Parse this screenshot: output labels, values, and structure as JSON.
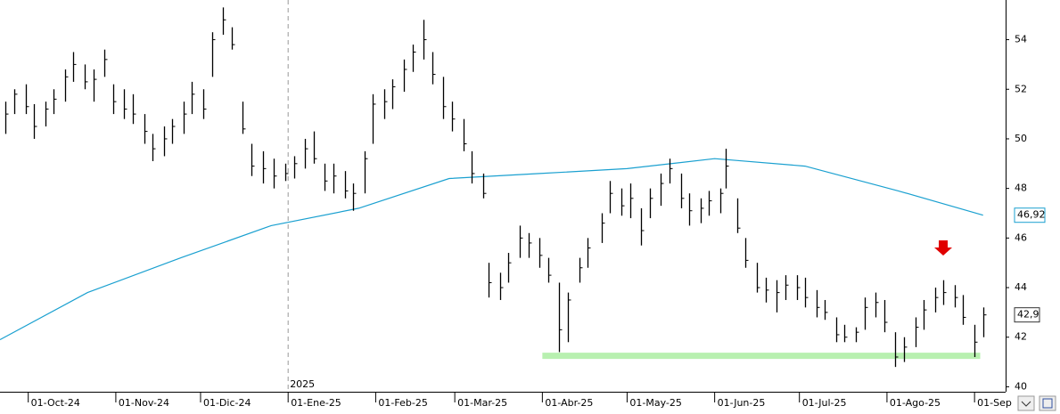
{
  "chart_data": {
    "type": "ohlc",
    "x": [
      "2024-09-23",
      "2024-09-26",
      "2024-09-30",
      "2024-10-03",
      "2024-10-07",
      "2024-10-10",
      "2024-10-14",
      "2024-10-17",
      "2024-10-21",
      "2024-10-24",
      "2024-10-28",
      "2024-10-31",
      "2024-11-04",
      "2024-11-07",
      "2024-11-11",
      "2024-11-14",
      "2024-11-18",
      "2024-11-21",
      "2024-11-25",
      "2024-11-28",
      "2024-12-02",
      "2024-12-05",
      "2024-12-09",
      "2024-12-12",
      "2024-12-16",
      "2024-12-19",
      "2024-12-23",
      "2024-12-27",
      "2024-12-31",
      "2025-01-03",
      "2025-01-07",
      "2025-01-10",
      "2025-01-14",
      "2025-01-17",
      "2025-01-21",
      "2025-01-24",
      "2025-01-28",
      "2025-01-31",
      "2025-02-04",
      "2025-02-07",
      "2025-02-11",
      "2025-02-14",
      "2025-02-18",
      "2025-02-21",
      "2025-02-25",
      "2025-02-28",
      "2025-03-04",
      "2025-03-07",
      "2025-03-11",
      "2025-03-13",
      "2025-03-17",
      "2025-03-20",
      "2025-03-24",
      "2025-03-27",
      "2025-03-31",
      "2025-04-03",
      "2025-04-07",
      "2025-04-10",
      "2025-04-14",
      "2025-04-17",
      "2025-04-22",
      "2025-04-25",
      "2025-04-29",
      "2025-05-02",
      "2025-05-06",
      "2025-05-09",
      "2025-05-13",
      "2025-05-16",
      "2025-05-20",
      "2025-05-23",
      "2025-05-27",
      "2025-05-30",
      "2025-06-03",
      "2025-06-05",
      "2025-06-09",
      "2025-06-12",
      "2025-06-16",
      "2025-06-19",
      "2025-06-23",
      "2025-06-26",
      "2025-06-30",
      "2025-07-03",
      "2025-07-07",
      "2025-07-10",
      "2025-07-14",
      "2025-07-17",
      "2025-07-21",
      "2025-07-24",
      "2025-07-28",
      "2025-07-31",
      "2025-08-04",
      "2025-08-07",
      "2025-08-11",
      "2025-08-14",
      "2025-08-18",
      "2025-08-21",
      "2025-08-25",
      "2025-08-28",
      "2025-09-01",
      "2025-09-04"
    ],
    "high": [
      51.5,
      52.0,
      52.2,
      51.4,
      51.5,
      52.0,
      52.8,
      53.5,
      53.0,
      52.8,
      53.6,
      52.2,
      52.0,
      51.8,
      51.0,
      50.2,
      50.5,
      50.8,
      51.5,
      52.3,
      52.0,
      54.3,
      55.3,
      54.5,
      51.5,
      49.8,
      49.5,
      49.2,
      49.0,
      49.3,
      50.0,
      50.3,
      49.0,
      49.0,
      48.7,
      48.2,
      49.5,
      51.8,
      52.0,
      52.4,
      53.2,
      53.8,
      54.8,
      53.5,
      52.5,
      51.5,
      50.8,
      49.5,
      48.6,
      45.0,
      44.6,
      45.4,
      46.5,
      46.2,
      46.0,
      45.2,
      44.2,
      43.8,
      45.2,
      46.0,
      47.0,
      48.3,
      48.0,
      48.2,
      47.2,
      48.0,
      48.6,
      49.2,
      48.6,
      47.8,
      47.6,
      47.9,
      48.0,
      49.6,
      47.6,
      46.0,
      45.0,
      44.4,
      44.3,
      44.5,
      44.5,
      44.4,
      43.9,
      43.5,
      42.8,
      42.5,
      42.4,
      43.6,
      43.8,
      43.5,
      42.2,
      42.0,
      42.8,
      43.5,
      44.0,
      44.3,
      44.1,
      43.7,
      42.5,
      43.2
    ],
    "low": [
      50.2,
      51.0,
      51.0,
      50.0,
      50.5,
      51.0,
      51.5,
      52.3,
      52.0,
      51.5,
      52.5,
      51.0,
      50.8,
      50.6,
      49.8,
      49.1,
      49.3,
      49.8,
      50.2,
      51.0,
      50.8,
      52.5,
      54.2,
      53.6,
      50.2,
      48.5,
      48.2,
      48.0,
      48.3,
      48.4,
      48.8,
      49.0,
      47.9,
      47.8,
      47.6,
      47.1,
      47.8,
      49.8,
      50.8,
      51.2,
      51.9,
      52.7,
      53.2,
      52.2,
      50.8,
      50.3,
      49.5,
      48.2,
      47.6,
      43.6,
      43.5,
      44.2,
      45.2,
      45.2,
      44.8,
      44.2,
      41.4,
      41.8,
      44.2,
      44.8,
      45.8,
      47.0,
      46.9,
      46.8,
      45.7,
      46.8,
      47.3,
      48.2,
      47.2,
      46.5,
      46.6,
      46.9,
      47.0,
      48.0,
      46.2,
      44.8,
      43.8,
      43.4,
      43.0,
      43.5,
      43.5,
      43.2,
      42.8,
      42.7,
      41.8,
      41.8,
      41.8,
      42.3,
      42.8,
      42.2,
      40.8,
      41.0,
      41.6,
      42.3,
      43.0,
      43.3,
      43.2,
      42.5,
      41.2,
      42.0
    ],
    "close": [
      51.0,
      51.8,
      51.3,
      50.5,
      51.2,
      51.6,
      52.5,
      53.0,
      52.3,
      52.4,
      53.2,
      51.5,
      51.2,
      51.0,
      50.3,
      49.6,
      50.0,
      50.5,
      51.0,
      51.8,
      51.2,
      54.0,
      54.8,
      53.8,
      50.4,
      48.9,
      48.8,
      48.5,
      48.6,
      49.0,
      49.6,
      49.2,
      48.3,
      48.5,
      47.9,
      47.8,
      49.2,
      51.4,
      51.5,
      52.1,
      52.8,
      53.5,
      54.0,
      52.6,
      51.3,
      50.8,
      49.8,
      48.6,
      47.8,
      44.2,
      44.0,
      45.0,
      46.0,
      45.8,
      45.3,
      44.5,
      42.3,
      43.5,
      44.8,
      45.6,
      46.6,
      47.8,
      47.3,
      47.6,
      46.3,
      47.6,
      48.2,
      48.8,
      47.6,
      47.1,
      47.2,
      47.5,
      47.8,
      48.9,
      46.4,
      45.1,
      44.0,
      43.9,
      43.8,
      44.1,
      44.0,
      43.6,
      43.2,
      43.0,
      42.1,
      42.0,
      42.2,
      43.2,
      43.4,
      42.6,
      41.2,
      41.6,
      42.4,
      43.1,
      43.6,
      43.8,
      43.6,
      42.8,
      41.8,
      42.9
    ],
    "close_label": "42,9",
    "color": "#000000",
    "moving_average": {
      "x": [
        "2024-09-21",
        "2024-10-22",
        "2024-11-24",
        "2024-12-26",
        "2025-01-26",
        "2025-02-27",
        "2025-03-31",
        "2025-05-01",
        "2025-06-01",
        "2025-07-03",
        "2025-08-05",
        "2025-09-04"
      ],
      "values": [
        41.9,
        43.8,
        45.2,
        46.5,
        47.2,
        48.4,
        48.6,
        48.8,
        49.2,
        48.9,
        47.9,
        46.92
      ],
      "value_label": "46,92",
      "color": "#1aa0d0"
    },
    "support": {
      "value": 41.25,
      "from": "2025-04-01",
      "to": "2025-09-03",
      "color": "#b8f0b0"
    },
    "year_marker": {
      "x": "2025-01-01",
      "label": "2025"
    },
    "xlim": [
      "2024-09-21",
      "2025-09-12"
    ],
    "xticks": [
      {
        "value": "2024-10-01",
        "label": "01-Oct-24"
      },
      {
        "value": "2024-11-01",
        "label": "01-Nov-24"
      },
      {
        "value": "2024-12-01",
        "label": "01-Dic-24"
      },
      {
        "value": "2025-01-01",
        "label": "01-Ene-25"
      },
      {
        "value": "2025-02-01",
        "label": "01-Feb-25"
      },
      {
        "value": "2025-03-01",
        "label": "01-Mar-25"
      },
      {
        "value": "2025-04-01",
        "label": "01-Abr-25"
      },
      {
        "value": "2025-05-01",
        "label": "01-May-25"
      },
      {
        "value": "2025-06-01",
        "label": "01-Jun-25"
      },
      {
        "value": "2025-07-01",
        "label": "01-Jul-25"
      },
      {
        "value": "2025-08-01",
        "label": "01-Ago-25"
      },
      {
        "value": "2025-09-01",
        "label": "01-Sep"
      }
    ],
    "ylim": [
      39.8,
      55.6
    ],
    "yticks": [
      40,
      42,
      44,
      46,
      48,
      50,
      52,
      54
    ]
  }
}
